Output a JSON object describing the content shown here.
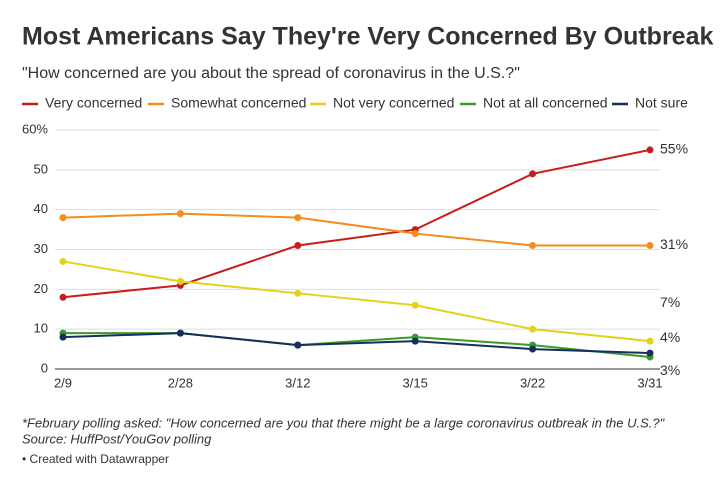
{
  "chart_data": {
    "type": "line",
    "title": "Most Americans Say They're Very Concerned By Outbreak",
    "subtitle": "\"How concerned are you about the spread of coronavirus in the U.S.?\"",
    "categories": [
      "2/9",
      "2/28",
      "3/12",
      "3/15",
      "3/22",
      "3/31"
    ],
    "series": [
      {
        "name": "Very concerned",
        "color": "#c71e1d",
        "values": [
          18,
          21,
          31,
          35,
          49,
          55
        ],
        "value_labels": [
          null,
          null,
          null,
          null,
          null,
          "55%"
        ]
      },
      {
        "name": "Somewhat concerned",
        "color": "#f58c1c",
        "values": [
          38,
          39,
          38,
          34,
          31,
          31
        ],
        "value_labels": [
          null,
          null,
          null,
          null,
          null,
          "31%"
        ]
      },
      {
        "name": "Not very concerned",
        "color": "#e3d21b",
        "values": [
          27,
          22,
          19,
          16,
          10,
          7
        ],
        "value_labels": [
          null,
          null,
          null,
          null,
          null,
          "7%"
        ]
      },
      {
        "name": "Not at all concerned",
        "color": "#3a9a2a",
        "values": [
          9,
          9,
          6,
          8,
          6,
          3
        ],
        "value_labels": [
          null,
          null,
          null,
          null,
          null,
          "3%"
        ]
      },
      {
        "name": "Not sure",
        "color": "#15305e",
        "values": [
          8,
          9,
          6,
          7,
          5,
          4
        ],
        "value_labels": [
          null,
          null,
          null,
          null,
          null,
          "4%"
        ]
      }
    ],
    "ylim": [
      0,
      60
    ],
    "yticks": [
      0,
      10,
      20,
      30,
      40,
      50,
      {
        "value": 60,
        "label": "60%"
      }
    ],
    "grid": true,
    "notes": "*February polling asked: \"How concerned are you that there might be a large coronavirus outbreak in the U.S.?\"",
    "source": "Source: HuffPost/YouGov polling",
    "credit": "• Created with Datawrapper"
  }
}
